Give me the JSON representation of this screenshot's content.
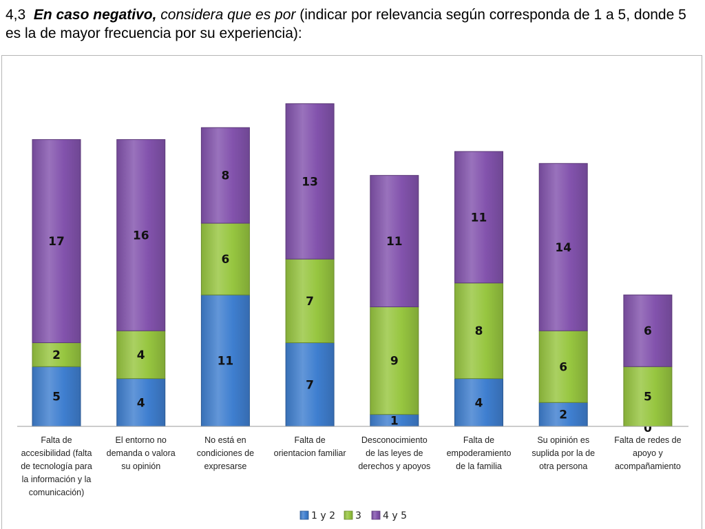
{
  "heading": {
    "number": "4,3",
    "bold_italic": "En caso negativo,",
    "italic": "considera que es por",
    "rest": "(indicar por relevancia según corresponda de 1 a 5, donde 5 es la de mayor frecuencia por su experiencia):"
  },
  "chart_data": {
    "type": "bar",
    "stacked": true,
    "categories": [
      "Falta de accesibilidad (falta de tecnología para la información y la comunicación)",
      "El entorno no demanda o valora su opinión",
      "No está en condiciones de expresarse",
      "Falta de orientacion familiar",
      "Desconocimiento de las leyes de derechos y apoyos",
      "Falta de empoderamiento de la familia",
      "Su opinión es suplida por la de otra persona",
      "Falta de redes de apoyo y acompañamiento"
    ],
    "category_lines": [
      [
        "Falta de",
        "accesibilidad  (falta",
        "de tecnología para",
        "la información y la",
        "comunicación)"
      ],
      [
        "El entorno no",
        "demanda o valora",
        "su opinión"
      ],
      [
        "No está en",
        "condiciones de",
        "expresarse"
      ],
      [
        "Falta de",
        "orientacion familiar"
      ],
      [
        "Desconocimiento",
        "de las leyes de",
        "derechos y apoyos"
      ],
      [
        "Falta de",
        "empoderamiento",
        "de la familia"
      ],
      [
        "Su opinión es",
        "suplida por la de",
        "otra persona"
      ],
      [
        "Falta de redes de",
        "apoyo y",
        "acompañamiento"
      ]
    ],
    "series": [
      {
        "name": "1 y 2",
        "values": [
          5,
          4,
          11,
          7,
          1,
          4,
          2,
          0
        ],
        "color": "#3f7fd0"
      },
      {
        "name": "3",
        "values": [
          2,
          4,
          6,
          7,
          9,
          8,
          6,
          5
        ],
        "color": "#97c640"
      },
      {
        "name": "4 y 5",
        "values": [
          17,
          16,
          8,
          13,
          11,
          11,
          14,
          6
        ],
        "color": "#8353ad"
      }
    ],
    "legend_position": "bottom",
    "grid": false
  }
}
